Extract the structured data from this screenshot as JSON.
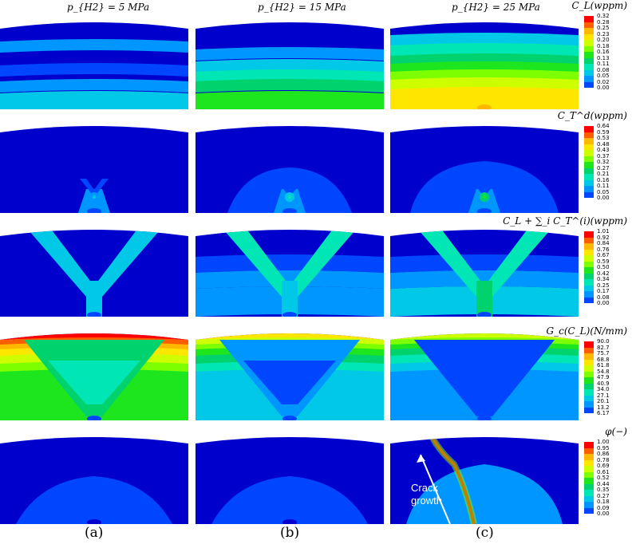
{
  "column_headers": [
    "p_{H2} = 5 MPa",
    "p_{H2} = 15 MPa",
    "p_{H2} = 25 MPa"
  ],
  "subfigure_labels": [
    "(a)",
    "(b)",
    "(c)"
  ],
  "rows": [
    {
      "colorbar_title": "C_L(wppm)",
      "ticks": [
        "0.32",
        "0.28",
        "0.25",
        "0.23",
        "0.20",
        "0.18",
        "0.16",
        "0.13",
        "0.11",
        "0.08",
        "0.05",
        "0.02",
        "0.00"
      ]
    },
    {
      "colorbar_title": "C_T^d(wppm)",
      "ticks": [
        "0.64",
        "0.59",
        "0.53",
        "0.48",
        "0.43",
        "0.37",
        "0.32",
        "0.27",
        "0.21",
        "0.16",
        "0.11",
        "0.05",
        "0.00"
      ]
    },
    {
      "colorbar_title": "C_L + ∑_i C_T^(i)(wppm)",
      "ticks": [
        "1.01",
        "0.92",
        "0.84",
        "0.76",
        "0.67",
        "0.59",
        "0.50",
        "0.42",
        "0.34",
        "0.25",
        "0.17",
        "0.08",
        "0.00"
      ]
    },
    {
      "colorbar_title": "G_c(C_L)(N/mm)",
      "ticks": [
        "90.0",
        "82.7",
        "75.7",
        "68.8",
        "61.8",
        "54.8",
        "47.9",
        "40.9",
        "34.0",
        "27.1",
        "20.1",
        "13.2",
        "6.17"
      ]
    },
    {
      "colorbar_title": "φ(−)",
      "ticks": [
        "1.00",
        "0.95",
        "0.86",
        "0.78",
        "0.69",
        "0.61",
        "0.52",
        "0.44",
        "0.35",
        "0.27",
        "0.18",
        "0.09",
        "0.00"
      ]
    }
  ],
  "annotation": {
    "line1": "Crack",
    "line2": "growth"
  },
  "colors": [
    "#ff0000",
    "#ff5e00",
    "#ffb800",
    "#ffe600",
    "#cdff00",
    "#7dff00",
    "#1ee61e",
    "#00d26e",
    "#00e6b4",
    "#00c8e6",
    "#0096ff",
    "#0046ff",
    "#0000cd"
  ]
}
